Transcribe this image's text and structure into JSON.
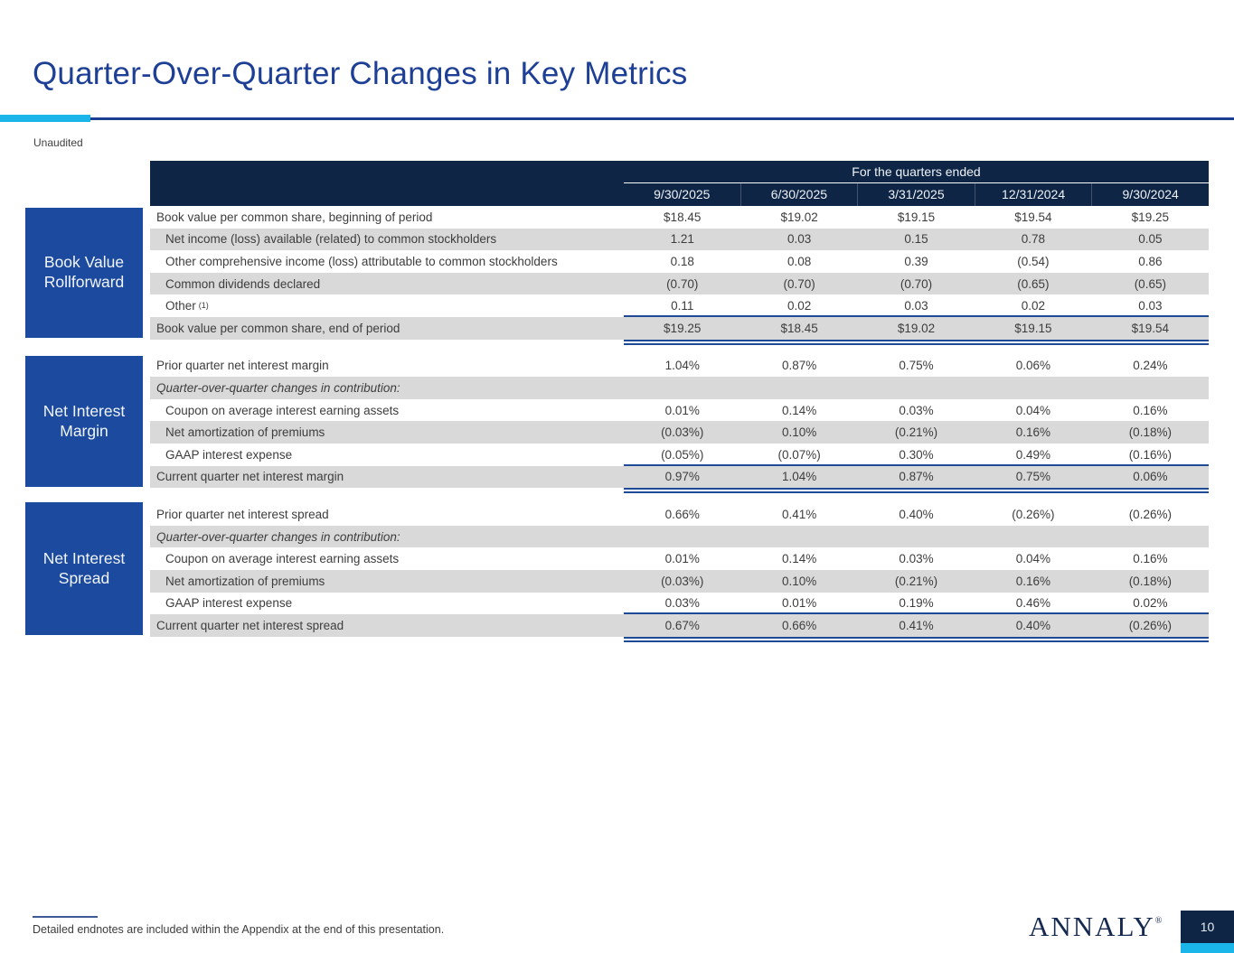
{
  "slide": {
    "title": "Quarter-Over-Quarter Changes in Key Metrics",
    "unaudited_label": "Unaudited",
    "footnote": "Detailed endnotes are included within the Appendix at the end of this presentation.",
    "logo_text": "ANNALY",
    "logo_reg_mark": "®",
    "page_number": "10"
  },
  "colors": {
    "accent_cyan": "#1ab6ea",
    "header_navy": "#0e2545",
    "box_blue": "#1b4a9e",
    "title_blue": "#1d3f96",
    "row_shade_gray": "#d9d9d9",
    "rule_blue": "#1f4b96"
  },
  "table": {
    "header": {
      "group_label": "For the quarters ended",
      "columns": [
        "9/30/2025",
        "6/30/2025",
        "3/31/2025",
        "12/31/2024",
        "9/30/2024"
      ]
    },
    "sections": [
      {
        "box_label_line1": "Book Value",
        "box_label_line2": "Rollforward",
        "rows": [
          {
            "label": "Book value per common share, beginning of period",
            "values": [
              "$18.45",
              "$19.02",
              "$19.15",
              "$19.54",
              "$19.25"
            ]
          },
          {
            "label": "Net income (loss) available (related) to common stockholders",
            "values": [
              "1.21",
              "0.03",
              "0.15",
              "0.78",
              "0.05"
            ]
          },
          {
            "label": "Other comprehensive income (loss) attributable to common stockholders",
            "values": [
              "0.18",
              "0.08",
              "0.39",
              "(0.54)",
              "0.86"
            ]
          },
          {
            "label": "Common dividends declared",
            "values": [
              "(0.70)",
              "(0.70)",
              "(0.70)",
              "(0.65)",
              "(0.65)"
            ]
          },
          {
            "label": "Other",
            "sup": "(1)",
            "values": [
              "0.11",
              "0.02",
              "0.03",
              "0.02",
              "0.03"
            ]
          },
          {
            "label": "Book value per common share, end of period",
            "values": [
              "$19.25",
              "$18.45",
              "$19.02",
              "$19.15",
              "$19.54"
            ]
          }
        ]
      },
      {
        "box_label_line1": "Net Interest",
        "box_label_line2": "Margin",
        "rows": [
          {
            "label": "Prior quarter net interest margin",
            "values": [
              "1.04%",
              "0.87%",
              "0.75%",
              "0.06%",
              "0.24%"
            ]
          },
          {
            "label": "Quarter-over-quarter changes in contribution:",
            "values": [
              "",
              "",
              "",
              "",
              ""
            ]
          },
          {
            "label": "Coupon on average interest earning assets",
            "values": [
              "0.01%",
              "0.14%",
              "0.03%",
              "0.04%",
              "0.16%"
            ]
          },
          {
            "label": "Net amortization of premiums",
            "values": [
              "(0.03%)",
              "0.10%",
              "(0.21%)",
              "0.16%",
              "(0.18%)"
            ]
          },
          {
            "label": "GAAP interest expense",
            "values": [
              "(0.05%)",
              "(0.07%)",
              "0.30%",
              "0.49%",
              "(0.16%)"
            ]
          },
          {
            "label": "Current quarter net interest margin",
            "values": [
              "0.97%",
              "1.04%",
              "0.87%",
              "0.75%",
              "0.06%"
            ]
          }
        ]
      },
      {
        "box_label_line1": "Net Interest",
        "box_label_line2": "Spread",
        "rows": [
          {
            "label": "Prior quarter net interest spread",
            "values": [
              "0.66%",
              "0.41%",
              "0.40%",
              "(0.26%)",
              "(0.26%)"
            ]
          },
          {
            "label": "Quarter-over-quarter changes in contribution:",
            "values": [
              "",
              "",
              "",
              "",
              ""
            ]
          },
          {
            "label": "Coupon on average interest earning assets",
            "values": [
              "0.01%",
              "0.14%",
              "0.03%",
              "0.04%",
              "0.16%"
            ]
          },
          {
            "label": "Net amortization of premiums",
            "values": [
              "(0.03%)",
              "0.10%",
              "(0.21%)",
              "0.16%",
              "(0.18%)"
            ]
          },
          {
            "label": "GAAP interest expense",
            "values": [
              "0.03%",
              "0.01%",
              "0.19%",
              "0.46%",
              "0.02%"
            ]
          },
          {
            "label": "Current quarter net interest spread",
            "values": [
              "0.67%",
              "0.66%",
              "0.41%",
              "0.40%",
              "(0.26%)"
            ]
          }
        ]
      }
    ]
  }
}
